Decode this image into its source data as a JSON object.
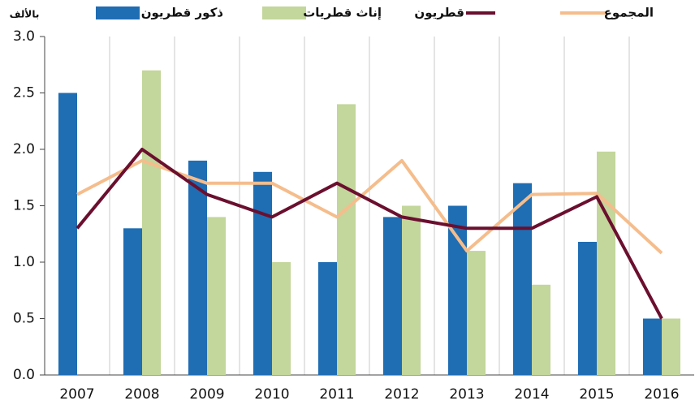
{
  "chart_data": {
    "type": "bar_line",
    "unit_label": "بالألف",
    "categories": [
      "2007",
      "2008",
      "2009",
      "2010",
      "2011",
      "2012",
      "2013",
      "2014",
      "2015",
      "2016"
    ],
    "series": [
      {
        "name": "ذكور قطريون",
        "kind": "bar",
        "color": "#1f6db3",
        "values": [
          2.5,
          1.3,
          1.9,
          1.8,
          1.0,
          1.4,
          1.5,
          1.7,
          1.18,
          0.5
        ]
      },
      {
        "name": "إناث قطريات",
        "kind": "bar",
        "color": "#c3d69b",
        "values": [
          null,
          2.7,
          1.4,
          1.0,
          2.4,
          1.5,
          1.1,
          0.8,
          1.98,
          0.5
        ]
      },
      {
        "name": "قطريون",
        "kind": "line",
        "color": "#6b0f2f",
        "values": [
          1.3,
          2.0,
          1.6,
          1.4,
          1.7,
          1.4,
          1.3,
          1.3,
          1.58,
          0.5
        ]
      },
      {
        "name": "المجموع",
        "kind": "line",
        "color": "#f5bd8c",
        "values": [
          1.6,
          1.9,
          1.7,
          1.7,
          1.4,
          1.9,
          1.1,
          1.6,
          1.61,
          1.08
        ]
      }
    ],
    "ylim": [
      0,
      3
    ],
    "yticks": [
      {
        "value": 0,
        "label": "0.0"
      },
      {
        "value": 0.5,
        "label": "0.5"
      },
      {
        "value": 1,
        "label": "1.0"
      },
      {
        "value": 1.5,
        "label": "1.5"
      },
      {
        "value": 2,
        "label": "2.0"
      },
      {
        "value": 2.5,
        "label": "2.5"
      },
      {
        "value": 3,
        "label": "3.0"
      }
    ],
    "grid": "vertical"
  }
}
